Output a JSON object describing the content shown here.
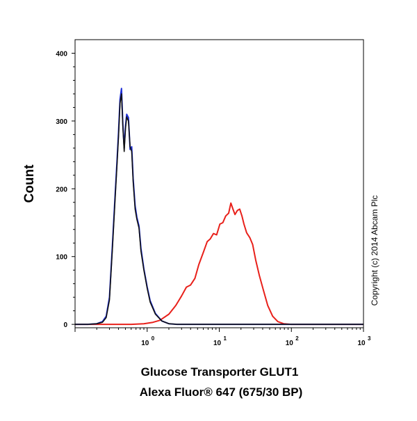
{
  "chart_data": {
    "type": "area",
    "title": "",
    "xlabel_line1": "Glucose Transporter GLUT1",
    "xlabel_line2": "Alexa Fluor® 647 (675/30 BP)",
    "ylabel": "Count",
    "xscale": "log",
    "xlim": [
      0.1,
      1000
    ],
    "ylim": [
      -5,
      420
    ],
    "xticks": [
      {
        "value": 1,
        "base": "10",
        "exp": "0"
      },
      {
        "value": 10,
        "base": "10",
        "exp": "1"
      },
      {
        "value": 100,
        "base": "10",
        "exp": "2"
      },
      {
        "value": 1000,
        "base": "10",
        "exp": "3"
      }
    ],
    "yticks": [
      {
        "value": 0,
        "label": "0"
      },
      {
        "value": 100,
        "label": "100"
      },
      {
        "value": 200,
        "label": "200"
      },
      {
        "value": 300,
        "label": "300"
      },
      {
        "value": 400,
        "label": "400"
      }
    ],
    "grid": false,
    "legend": "none",
    "annotation": "Copyright (c) 2014 Abcam Plc",
    "series": [
      {
        "color": "#e8201a",
        "x": [
          0.1,
          0.6,
          0.9,
          1.2,
          1.5,
          2.0,
          2.5,
          3.0,
          3.5,
          4.0,
          4.6,
          5.2,
          6.0,
          6.8,
          7.5,
          8.3,
          9.2,
          10.2,
          11.2,
          12.3,
          13.5,
          14.5,
          15.5,
          16.5,
          17.8,
          19.2,
          20.6,
          22.0,
          24.0,
          26.5,
          29.0,
          32.0,
          36.0,
          41.0,
          47.0,
          55.0,
          65.0,
          78.0,
          100.0,
          200.0,
          1000.0
        ],
        "y": [
          0,
          0,
          1,
          3,
          6,
          15,
          28,
          42,
          55,
          58,
          68,
          88,
          106,
          122,
          126,
          134,
          132,
          148,
          150,
          160,
          164,
          179,
          170,
          162,
          168,
          170,
          160,
          148,
          135,
          128,
          118,
          95,
          72,
          50,
          28,
          12,
          4,
          1,
          0,
          0,
          0
        ]
      },
      {
        "color": "#1f2fd6",
        "x": [
          0.1,
          0.15,
          0.2,
          0.24,
          0.27,
          0.3,
          0.33,
          0.36,
          0.38,
          0.4,
          0.42,
          0.44,
          0.46,
          0.48,
          0.5,
          0.52,
          0.55,
          0.58,
          0.61,
          0.64,
          0.68,
          0.72,
          0.77,
          0.82,
          0.9,
          1.0,
          1.1,
          1.3,
          1.6,
          2.0,
          2.6,
          4.0,
          10.0,
          1000.0
        ],
        "y": [
          0,
          0,
          1,
          4,
          12,
          40,
          118,
          192,
          238,
          283,
          332,
          348,
          295,
          260,
          292,
          310,
          305,
          258,
          262,
          215,
          175,
          158,
          145,
          112,
          82,
          55,
          35,
          16,
          5,
          1,
          0,
          0,
          0,
          0
        ]
      },
      {
        "color": "#111111",
        "x": [
          0.1,
          0.15,
          0.2,
          0.24,
          0.27,
          0.3,
          0.33,
          0.36,
          0.38,
          0.4,
          0.42,
          0.44,
          0.46,
          0.48,
          0.5,
          0.52,
          0.55,
          0.58,
          0.61,
          0.64,
          0.68,
          0.72,
          0.77,
          0.82,
          0.9,
          1.0,
          1.1,
          1.3,
          1.6,
          2.0,
          2.6,
          4.0,
          10.0,
          1000.0
        ],
        "y": [
          0,
          0,
          1,
          3,
          10,
          36,
          112,
          186,
          232,
          276,
          326,
          340,
          290,
          255,
          288,
          306,
          300,
          262,
          255,
          210,
          170,
          155,
          142,
          108,
          80,
          53,
          33,
          15,
          5,
          1,
          0,
          0,
          0,
          0
        ]
      }
    ]
  }
}
